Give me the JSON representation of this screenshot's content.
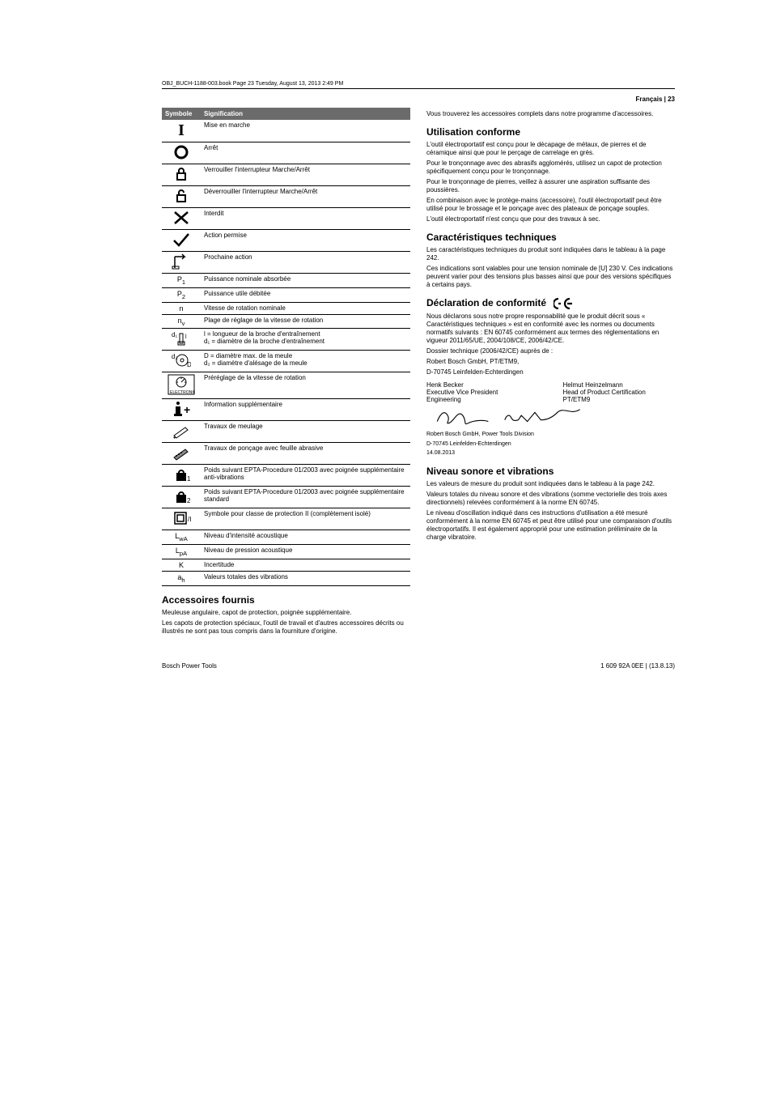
{
  "page_header": {
    "topline": "OBJ_BUCH-1188-003.book  Page 23  Tuesday, August 13, 2013  2:49 PM",
    "right": "Français | 23"
  },
  "table": {
    "head": {
      "c1": "Symbole",
      "c2": "Signification"
    },
    "rows": [
      {
        "sym": "I",
        "txt": "Mise en marche"
      },
      {
        "sym": "O",
        "txt": "Arrêt"
      },
      {
        "sym": "lock-closed",
        "txt": "Verrouiller l'interrupteur Marche/Arrêt"
      },
      {
        "sym": "lock-open",
        "txt": "Déverrouiller l'interrupteur Marche/Arrêt"
      },
      {
        "sym": "x",
        "txt": "Interdit"
      },
      {
        "sym": "check",
        "txt": "Action permise"
      },
      {
        "sym": "arrow",
        "txt": "Prochaine action"
      },
      {
        "sym": "P1",
        "txt": "Puissance nominale absorbée"
      },
      {
        "sym": "P2",
        "txt": "Puissance utile débitée"
      },
      {
        "sym": "n",
        "txt": "Vitesse de rotation nominale"
      },
      {
        "sym": "nv",
        "txt": "Plage de réglage de la vitesse de rotation"
      },
      {
        "sym": "spindle",
        "txt": "l = longueur de la broche d'entraînement\nd₁ = diamètre de la broche d'entraînement"
      },
      {
        "sym": "disc",
        "txt": "D = diamètre max. de la meule\nd₂ = diamètre d'alésage de la meule"
      },
      {
        "sym": "electronic",
        "txt": "Préréglage de la vitesse de rotation"
      },
      {
        "sym": "info",
        "txt": "Information supplémentaire"
      },
      {
        "sym": "grind",
        "txt": "Travaux de meulage"
      },
      {
        "sym": "sand",
        "txt": "Travaux de ponçage avec feuille abrasive"
      },
      {
        "sym": "weight1",
        "txt": "Poids suivant EPTA-Procedure 01/2003 avec poignée supplémentaire anti-vibrations"
      },
      {
        "sym": "weight2",
        "txt": "Poids suivant EPTA-Procedure 01/2003 avec poignée supplémentaire standard"
      },
      {
        "sym": "class2",
        "txt": "Symbole pour classe de protection II (complètement isolé)"
      },
      {
        "sym": "LwA",
        "txt": "Niveau d'intensité acoustique"
      },
      {
        "sym": "LpA",
        "txt": "Niveau de pression acoustique"
      },
      {
        "sym": "K",
        "txt": "Incertitude"
      },
      {
        "sym": "ah",
        "txt": "Valeurs totales des vibrations"
      }
    ]
  },
  "sections": {
    "acc": {
      "title": "Accessoires fournis",
      "p1": "Meuleuse angulaire, capot de protection, poignée supplémentaire.",
      "p2": "Les capots de protection spéciaux, l'outil de travail et d'autres accessoires décrits ou illustrés ne sont pas tous compris dans la fourniture d'origine.",
      "p3": "Vous trouverez les accessoires complets dans notre programme d'accessoires."
    },
    "util": {
      "title": "Utilisation conforme",
      "p1": "L'outil électroportatif est conçu pour le décapage de métaux, de pierres et de céramique ainsi que pour le perçage de carrelage en grès.",
      "p2": "Pour le tronçonnage avec des abrasifs agglomérés, utilisez un capot de protection spécifiquement conçu pour le tronçonnage.",
      "p3": "Pour le tronçonnage de pierres, veillez à assurer une aspiration suffisante des poussières.",
      "p4": "En combinaison avec le protège-mains (accessoire), l'outil électroportatif peut être utilisé pour le brossage et le ponçage avec des plateaux de ponçage souples.",
      "p5": "L'outil électroportatif n'est conçu que pour des travaux à sec."
    },
    "carac": {
      "title": "Caractéristiques techniques",
      "p1": "Les caractéristiques techniques du produit sont indiquées dans le tableau à la page 242.",
      "p2": "Ces indications sont valables pour une tension nominale de [U] 230 V. Ces indications peuvent varier pour des tensions plus basses ainsi que pour des versions spécifiques à certains pays."
    },
    "decl": {
      "title": "Déclaration de conformité",
      "p1": "Nous déclarons sous notre propre responsabilité que le produit décrit sous « Caractéristiques techniques » est en conformité avec les normes ou documents normatifs suivants : EN 60745 conformément aux termes des réglementations en vigueur 2011/65/UE, 2004/108/CE, 2006/42/CE.",
      "p2": "Dossier technique (2006/42/CE) auprès de :",
      "p3": "Robert Bosch GmbH, PT/ETM9,",
      "p4": "D-70745 Leinfelden-Echterdingen",
      "sig1_name": "Henk Becker",
      "sig1_t1": "Executive Vice President",
      "sig1_t2": "Engineering",
      "sig2_name": "Helmut Heinzelmann",
      "sig2_t1": "Head of Product Certification",
      "sig2_t2": "PT/ETM9",
      "addr1": "Robert Bosch GmbH, Power Tools Division",
      "addr2": "D-70745 Leinfelden-Echterdingen",
      "date": "14.08.2013"
    },
    "niv": {
      "title": "Niveau sonore et vibrations",
      "p1": "Les valeurs de mesure du produit sont indiquées dans le tableau à la page 242.",
      "p2": "Valeurs totales du niveau sonore et des vibrations (somme vectorielle des trois axes directionnels) relevées conformément à la norme EN 60745.",
      "p3": "Le niveau d'oscillation indiqué dans ces instructions d'utilisation a été mesuré conformément à la norme EN 60745 et peut être utilisé pour une comparaison d'outils électroportatifs. Il est également approprié pour une estimation préliminaire de la charge vibratoire."
    }
  },
  "footer": {
    "left": "Bosch Power Tools",
    "right": "1 609 92A 0EE | (13.8.13)"
  }
}
